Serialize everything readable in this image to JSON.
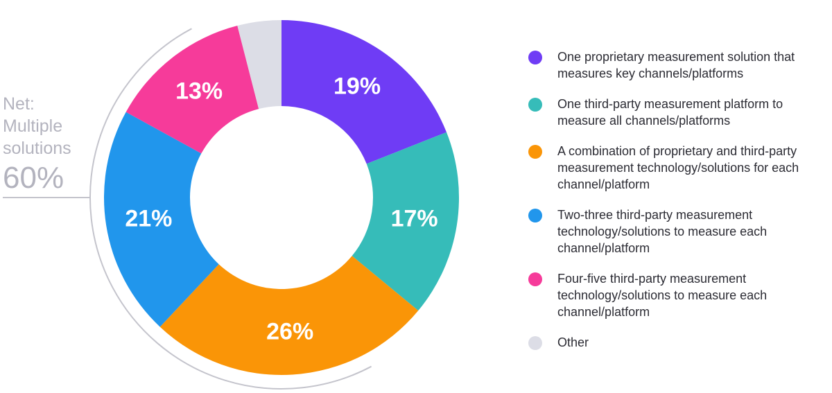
{
  "chart_data": {
    "type": "pie",
    "donut": true,
    "unit": "%",
    "slices": [
      {
        "label": "One proprietary measurement solution that measures key channels/platforms",
        "value": 19,
        "display": "19%",
        "color": "#6f3cf5"
      },
      {
        "label": "One third-party measurement platform to measure all channels/platforms",
        "value": 17,
        "display": "17%",
        "color": "#36bcb9"
      },
      {
        "label": "A combination of proprietary and third-party measurement technology/solutions for each channel/platform",
        "value": 26,
        "display": "26%",
        "color": "#fa9507"
      },
      {
        "label": "Two-three third-party measurement technology/solutions to measure each channel/platform",
        "value": 21,
        "display": "21%",
        "color": "#2196ec"
      },
      {
        "label": "Four-five third-party measurement technology/solutions to measure each channel/platform",
        "value": 13,
        "display": "13%",
        "color": "#f63b9a"
      },
      {
        "label": "Other",
        "value": 4,
        "display": "",
        "color": "#dcdde6"
      }
    ],
    "legend_position": "right"
  },
  "annotation": {
    "line1": "Net:",
    "line2": "Multiple",
    "line3": "solutions",
    "value": "60%"
  }
}
